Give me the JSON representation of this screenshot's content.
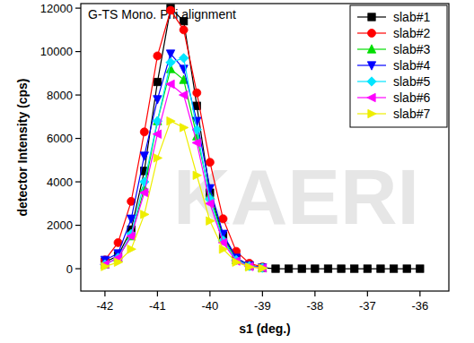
{
  "chart_data": {
    "type": "line",
    "title": "G-TS Mono. Phi alignment",
    "x_label": "s1 (deg.)",
    "y_label": "detector Intensity (cps)",
    "annotations": [
      "KAERI"
    ],
    "x": [
      -42,
      -41.75,
      -41.5,
      -41.25,
      -41,
      -40.75,
      -40.5,
      -40.25,
      -40,
      -39.75,
      -39.5,
      -39.25,
      -39,
      -38.75,
      -38.5,
      -38.25,
      -38,
      -37.75,
      -37.5,
      -37.25,
      -37,
      -36.75,
      -36.5,
      -36.25,
      -36
    ],
    "series": [
      {
        "name": "slab#1",
        "color": "#000000",
        "marker": "square",
        "values": [
          300,
          600,
          1800,
          4500,
          8600,
          12000,
          11400,
          7500,
          3500,
          1500,
          500,
          150,
          50,
          0,
          0,
          0,
          0,
          0,
          0,
          0,
          0,
          0,
          0,
          0,
          0
        ]
      },
      {
        "name": "slab#2",
        "color": "#ff0000",
        "marker": "circle",
        "values": [
          400,
          1200,
          3100,
          6300,
          9800,
          11900,
          11000,
          8100,
          4900,
          2300,
          800,
          250,
          80,
          null,
          null,
          null,
          null,
          null,
          null,
          null,
          null,
          null,
          null,
          null,
          null
        ]
      },
      {
        "name": "slab#3",
        "color": "#00dd00",
        "marker": "triangle-up",
        "values": [
          200,
          500,
          1500,
          3700,
          6800,
          9200,
          8700,
          6100,
          3400,
          1400,
          400,
          120,
          40,
          null,
          null,
          null,
          null,
          null,
          null,
          null,
          null,
          null,
          null,
          null,
          null
        ]
      },
      {
        "name": "slab#4",
        "color": "#0000ff",
        "marker": "triangle-down",
        "values": [
          400,
          700,
          2300,
          5200,
          7800,
          9900,
          9200,
          6800,
          3700,
          1600,
          500,
          150,
          50,
          null,
          null,
          null,
          null,
          null,
          null,
          null,
          null,
          null,
          null,
          null,
          null
        ]
      },
      {
        "name": "slab#5",
        "color": "#00e5ff",
        "marker": "diamond",
        "values": [
          200,
          500,
          1600,
          4000,
          6800,
          9500,
          9700,
          6400,
          3200,
          1300,
          400,
          120,
          40,
          null,
          null,
          null,
          null,
          null,
          null,
          null,
          null,
          null,
          null,
          null,
          null
        ]
      },
      {
        "name": "slab#6",
        "color": "#ff00ff",
        "marker": "triangle-left",
        "values": [
          200,
          500,
          1500,
          3500,
          6200,
          8500,
          8000,
          5800,
          3000,
          1200,
          350,
          100,
          30,
          null,
          null,
          null,
          null,
          null,
          null,
          null,
          null,
          null,
          null,
          null,
          null
        ]
      },
      {
        "name": "slab#7",
        "color": "#eeee00",
        "marker": "triangle-right",
        "values": [
          100,
          300,
          900,
          2500,
          5100,
          6800,
          6500,
          4300,
          2200,
          900,
          300,
          80,
          20,
          null,
          null,
          null,
          null,
          null,
          null,
          null,
          null,
          null,
          null,
          null,
          null
        ]
      }
    ],
    "xlim": [
      -42.46,
      -35.45
    ],
    "xticks": [
      -42,
      -41,
      -40,
      -39,
      -38,
      -37,
      -36
    ],
    "ylim": [
      -1030,
      12210
    ],
    "yticks": [
      0,
      2000,
      4000,
      6000,
      8000,
      10000,
      12000
    ],
    "grid": false,
    "legend": "upper right"
  }
}
